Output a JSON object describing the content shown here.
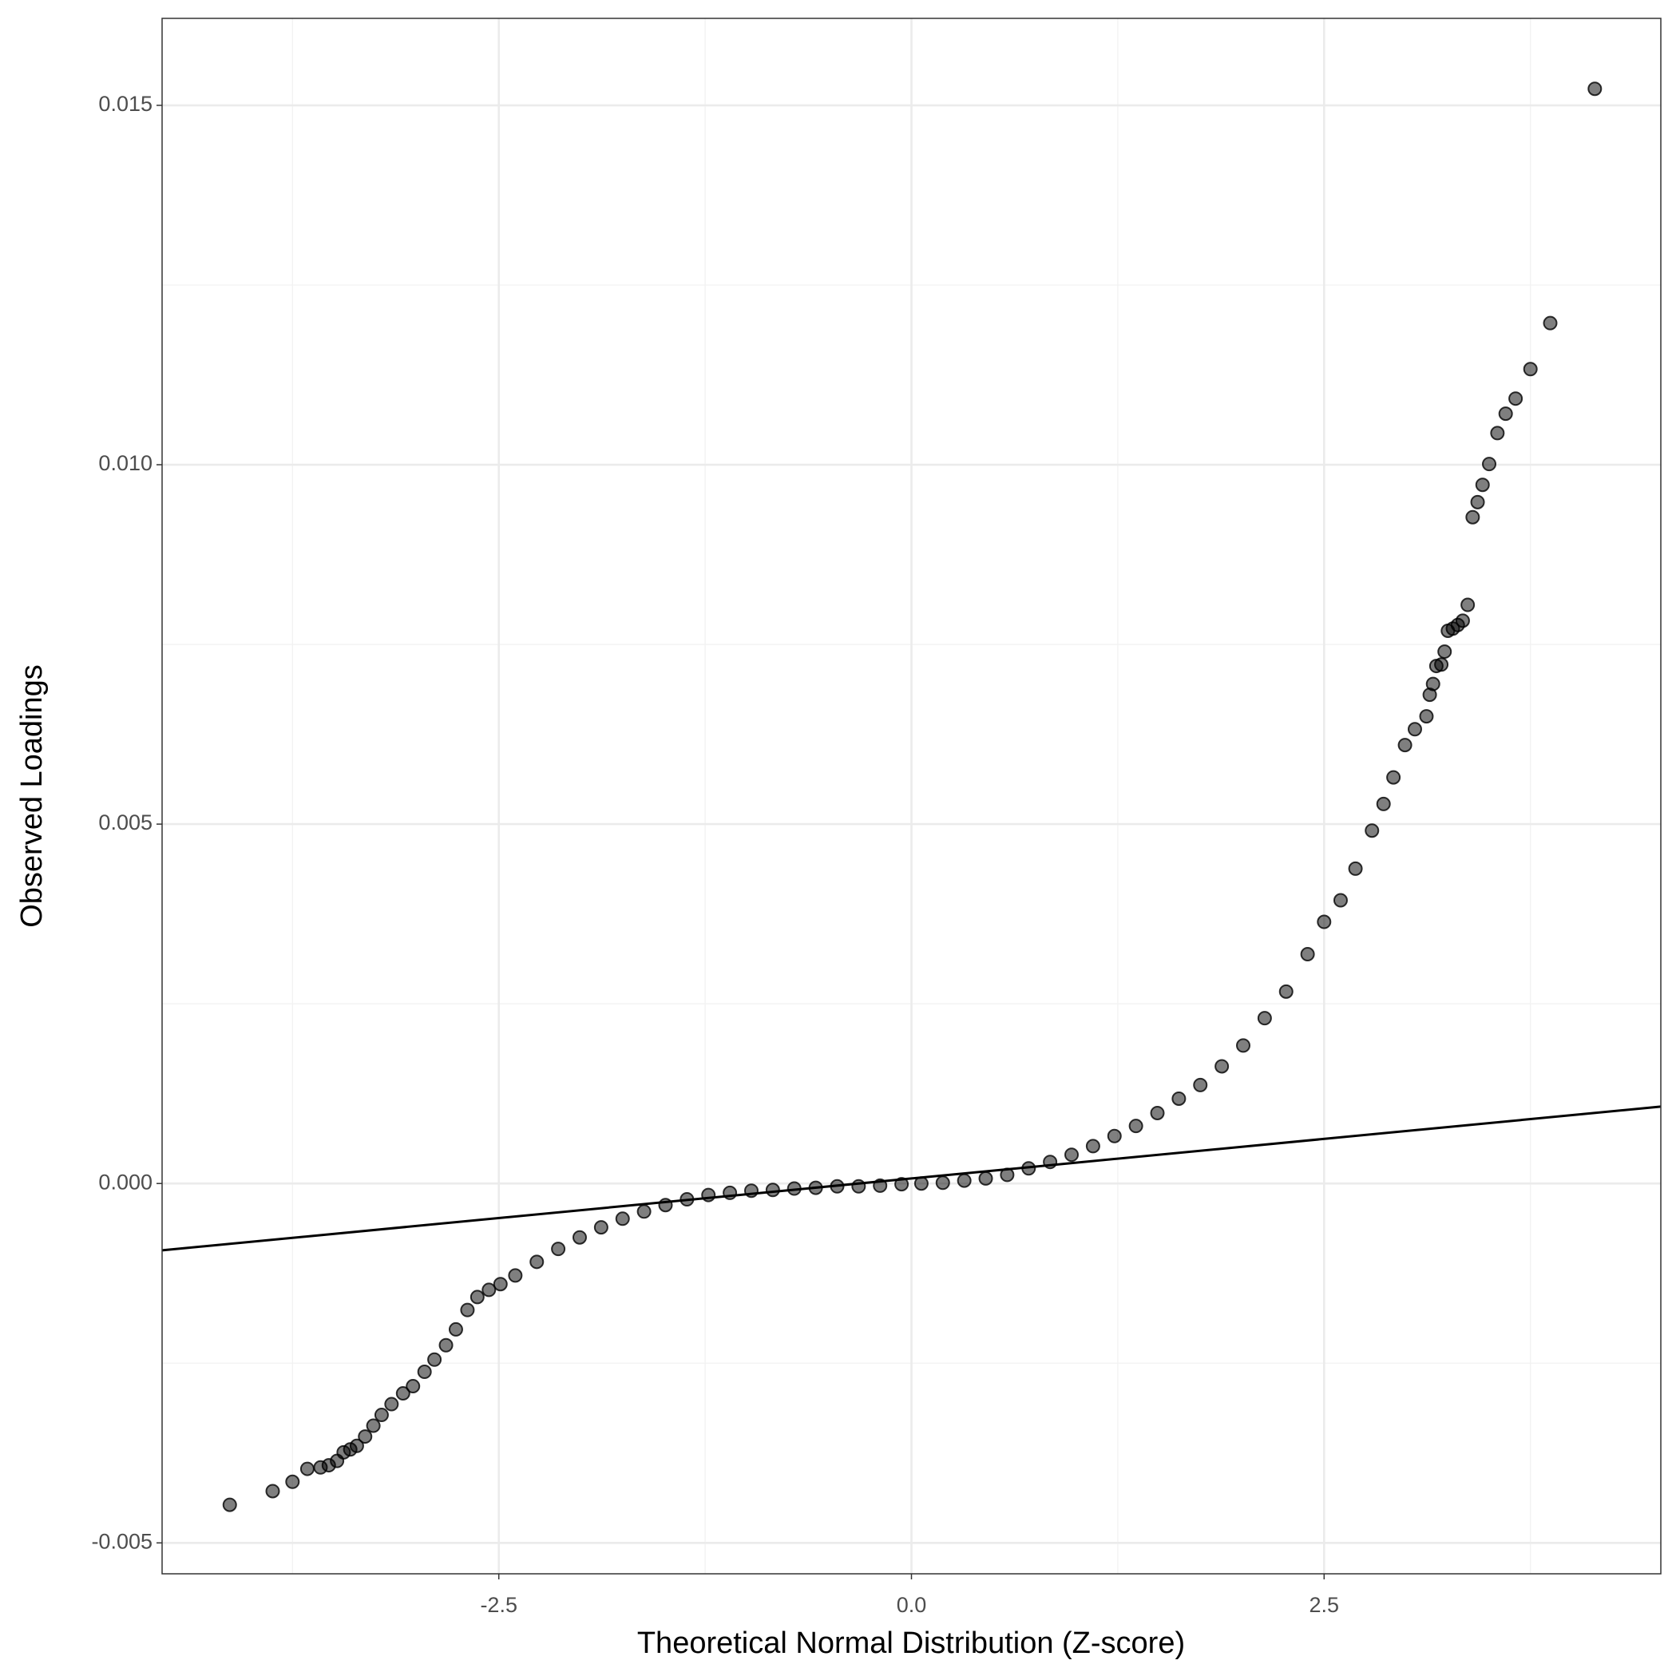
{
  "chart_data": {
    "type": "scatter",
    "x_label": "Theoretical Normal Distribution (Z-score)",
    "y_label": "Observed Loadings",
    "xlim": [
      -4.54,
      4.54
    ],
    "ylim": [
      -0.00543,
      0.01621
    ],
    "xticks": [
      {
        "value": -2.5,
        "label": "-2.5"
      },
      {
        "value": 0,
        "label": "0.0"
      },
      {
        "value": 2.5,
        "label": "2.5"
      }
    ],
    "yticks": [
      {
        "value": -0.005,
        "label": "-0.005"
      },
      {
        "value": 0,
        "label": "0.000"
      },
      0.005,
      {
        "value": 0.01,
        "label": "0.010"
      },
      0.015
    ],
    "x_minor_grid": [
      -3.75,
      -1.25,
      1.25,
      3.75
    ],
    "y_minor_grid": [
      -0.0025,
      0.0025,
      0.0075,
      0.0125
    ],
    "grid": true,
    "color": "#000000",
    "reference_line": {
      "x": [
        -4.54,
        4.54
      ],
      "y": [
        -0.00093,
        0.00107
      ],
      "color": "#000000"
    },
    "x": [
      -4.13,
      -3.87,
      -3.75,
      -3.66,
      -3.58,
      -3.53,
      -3.48,
      -3.44,
      -3.4,
      -3.36,
      -3.31,
      -3.26,
      -3.21,
      -3.15,
      -3.08,
      -3.02,
      -2.95,
      -2.89,
      -2.82,
      -2.76,
      -2.69,
      -2.63,
      -2.56,
      -2.49,
      -2.4,
      -2.27,
      -2.14,
      -2.01,
      -1.88,
      -1.75,
      -1.62,
      -1.49,
      -1.36,
      -1.23,
      -1.1,
      -0.97,
      -0.84,
      -0.71,
      -0.58,
      -0.45,
      -0.32,
      -0.19,
      -0.06,
      0.06,
      0.19,
      0.32,
      0.45,
      0.58,
      0.71,
      0.84,
      0.97,
      1.1,
      1.23,
      1.36,
      1.49,
      1.62,
      1.75,
      1.88,
      2.01,
      2.14,
      2.27,
      2.4,
      2.5,
      2.6,
      2.69,
      2.79,
      2.86,
      2.92,
      2.99,
      3.05,
      3.12,
      3.14,
      3.16,
      3.18,
      3.21,
      3.23,
      3.25,
      3.28,
      3.31,
      3.34,
      3.37,
      3.4,
      3.43,
      3.46,
      3.5,
      3.55,
      3.6,
      3.66,
      3.75,
      3.87,
      4.14
    ],
    "values": [
      -0.00447,
      -0.00428,
      -0.00415,
      -0.00397,
      -0.00395,
      -0.00392,
      -0.00386,
      -0.00374,
      -0.0037,
      -0.00365,
      -0.00352,
      -0.00337,
      -0.00322,
      -0.00307,
      -0.00292,
      -0.00282,
      -0.00262,
      -0.00245,
      -0.00225,
      -0.00203,
      -0.00176,
      -0.00158,
      -0.00148,
      -0.0014,
      -0.00128,
      -0.00109,
      -0.00091,
      -0.00075,
      -0.00061,
      -0.00049,
      -0.00039,
      -0.0003,
      -0.00022,
      -0.00016,
      -0.00013,
      -0.0001,
      -9e-05,
      -7e-05,
      -6e-05,
      -4e-05,
      -4e-05,
      -3e-05,
      -1e-05,
      0,
      1e-05,
      4e-05,
      7e-05,
      0.00012,
      0.00021,
      0.0003,
      0.0004,
      0.00052,
      0.00066,
      0.0008,
      0.00098,
      0.00118,
      0.00137,
      0.00163,
      0.00192,
      0.0023,
      0.00267,
      0.00319,
      0.00364,
      0.00394,
      0.00438,
      0.00491,
      0.00528,
      0.00565,
      0.0061,
      0.00632,
      0.0065,
      0.0068,
      0.00695,
      0.0072,
      0.00722,
      0.0074,
      0.00769,
      0.00772,
      0.00777,
      0.00783,
      0.00805,
      0.00927,
      0.00948,
      0.00972,
      0.01001,
      0.01044,
      0.01071,
      0.01092,
      0.01133,
      0.01197,
      0.01523
    ]
  }
}
